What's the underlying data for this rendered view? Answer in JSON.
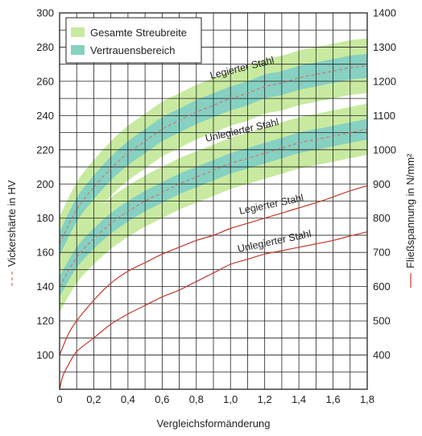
{
  "chart_data": {
    "type": "line",
    "title": "",
    "xlabel": "Vergleichsformänderung",
    "ylabel_left": "Vickershärte in HV",
    "ylabel_right": "Fließspannung in N/mm²",
    "xlim": [
      0,
      1.8
    ],
    "ylim_left": [
      80,
      300
    ],
    "ylim_right": [
      300,
      1400
    ],
    "x_ticks": [
      "0",
      "0,2",
      "0,4",
      "0,6",
      "0,8",
      "1,0",
      "1,2",
      "1,4",
      "1,6",
      "1,8"
    ],
    "y_left_ticks": [
      "100",
      "120",
      "140",
      "160",
      "180",
      "200",
      "220",
      "240",
      "260",
      "280",
      "300"
    ],
    "y_right_ticks": [
      "400",
      "500",
      "600",
      "700",
      "800",
      "900",
      "1000",
      "1100",
      "1200",
      "1300",
      "1400"
    ],
    "grid": true,
    "legend": {
      "placement": "top-left",
      "entries": [
        {
          "label": "Gesamte Streubreite",
          "color": "#c8eaa0"
        },
        {
          "label": "Vertrauensbereich",
          "color": "#86d1c2"
        }
      ]
    },
    "colors": {
      "scatter_band": "#c8eaa0",
      "confidence_band": "#86d1c2",
      "hardness_line": "#d0706a",
      "flow_line": "#c0392b"
    },
    "hardness_series": [
      {
        "name": "Legierter Stahl",
        "axis": "left",
        "x": [
          0,
          0.1,
          0.2,
          0.3,
          0.4,
          0.5,
          0.6,
          0.7,
          0.8,
          0.9,
          1.0,
          1.1,
          1.2,
          1.3,
          1.4,
          1.5,
          1.6,
          1.7,
          1.8
        ],
        "values": [
          165,
          185,
          198,
          209,
          218,
          225,
          232,
          237,
          242,
          246,
          250,
          253,
          257,
          259,
          262,
          264,
          266,
          268,
          269
        ],
        "band_total": 16,
        "band_confidence": 7
      },
      {
        "name": "Unlegierter Stahl",
        "axis": "left",
        "x": [
          0,
          0.1,
          0.2,
          0.3,
          0.4,
          0.5,
          0.6,
          0.7,
          0.8,
          0.9,
          1.0,
          1.1,
          1.2,
          1.3,
          1.4,
          1.5,
          1.6,
          1.7,
          1.8
        ],
        "values": [
          140,
          157,
          168,
          177,
          184,
          190,
          195,
          200,
          204,
          208,
          212,
          215,
          218,
          221,
          224,
          226,
          228,
          230,
          232
        ],
        "band_total": 15,
        "band_confidence": 6
      }
    ],
    "flow_series": [
      {
        "name": "Legierter Stahl",
        "axis": "right",
        "x": [
          0,
          0.05,
          0.1,
          0.2,
          0.3,
          0.4,
          0.5,
          0.6,
          0.7,
          0.8,
          0.9,
          1.0,
          1.1,
          1.2,
          1.3,
          1.4,
          1.5,
          1.6,
          1.7,
          1.8
        ],
        "values": [
          400,
          460,
          500,
          560,
          610,
          645,
          670,
          695,
          715,
          735,
          750,
          770,
          785,
          800,
          815,
          830,
          845,
          862,
          880,
          895
        ]
      },
      {
        "name": "Unlegierter Stahl",
        "axis": "right",
        "x": [
          0,
          0.02,
          0.05,
          0.1,
          0.2,
          0.3,
          0.4,
          0.5,
          0.6,
          0.7,
          0.8,
          0.9,
          1.0,
          1.1,
          1.2,
          1.3,
          1.4,
          1.5,
          1.6,
          1.7,
          1.8
        ],
        "values": [
          300,
          340,
          370,
          410,
          450,
          490,
          520,
          545,
          570,
          590,
          615,
          640,
          665,
          680,
          695,
          705,
          715,
          725,
          735,
          748,
          760
        ]
      }
    ]
  }
}
